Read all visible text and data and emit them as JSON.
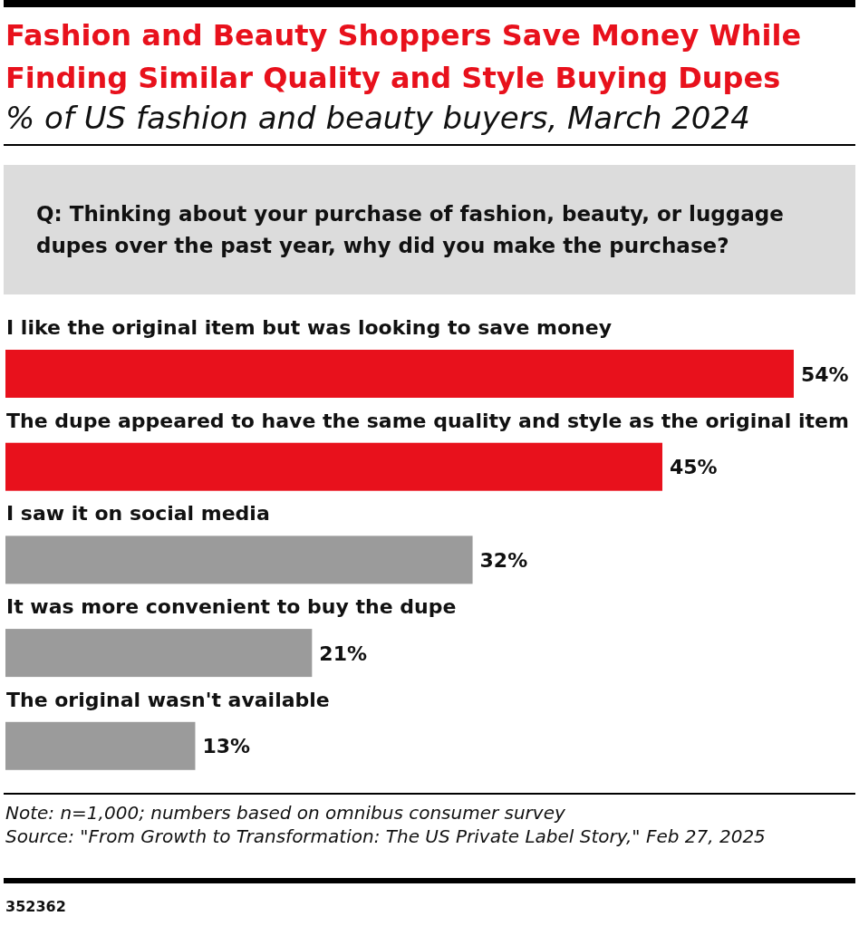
{
  "chart_data": {
    "type": "bar",
    "orientation": "horizontal",
    "title": "Fashion and Beauty Shoppers Save Money While Finding Similar Quality and Style Buying Dupes",
    "subtitle": "% of US fashion and beauty buyers, March 2024",
    "categories": [
      "I like the original item but was looking to save money",
      "The dupe appeared to have the same quality and style as the original item",
      "I saw it on social media",
      "It was more convenient to buy the dupe",
      "The original wasn't available"
    ],
    "values": [
      54,
      45,
      32,
      21,
      13
    ],
    "colors": [
      "#e8111c",
      "#e8111c",
      "#9b9b9b",
      "#9b9b9b",
      "#9b9b9b"
    ],
    "value_labels": [
      "54%",
      "45%",
      "32%",
      "21%",
      "13%"
    ],
    "tick_labels": "y",
    "annotations": [
      "Q: Thinking about your purchase of fashion, beauty, or luggage dupes over the past year, why did you make the purchase?",
      "Note: n=1,000; numbers based on omnibus consumer survey",
      "Source: \"From Growth to Transformation: The US Private Label Story,\" Feb 27, 2025",
      "352362"
    ]
  }
}
